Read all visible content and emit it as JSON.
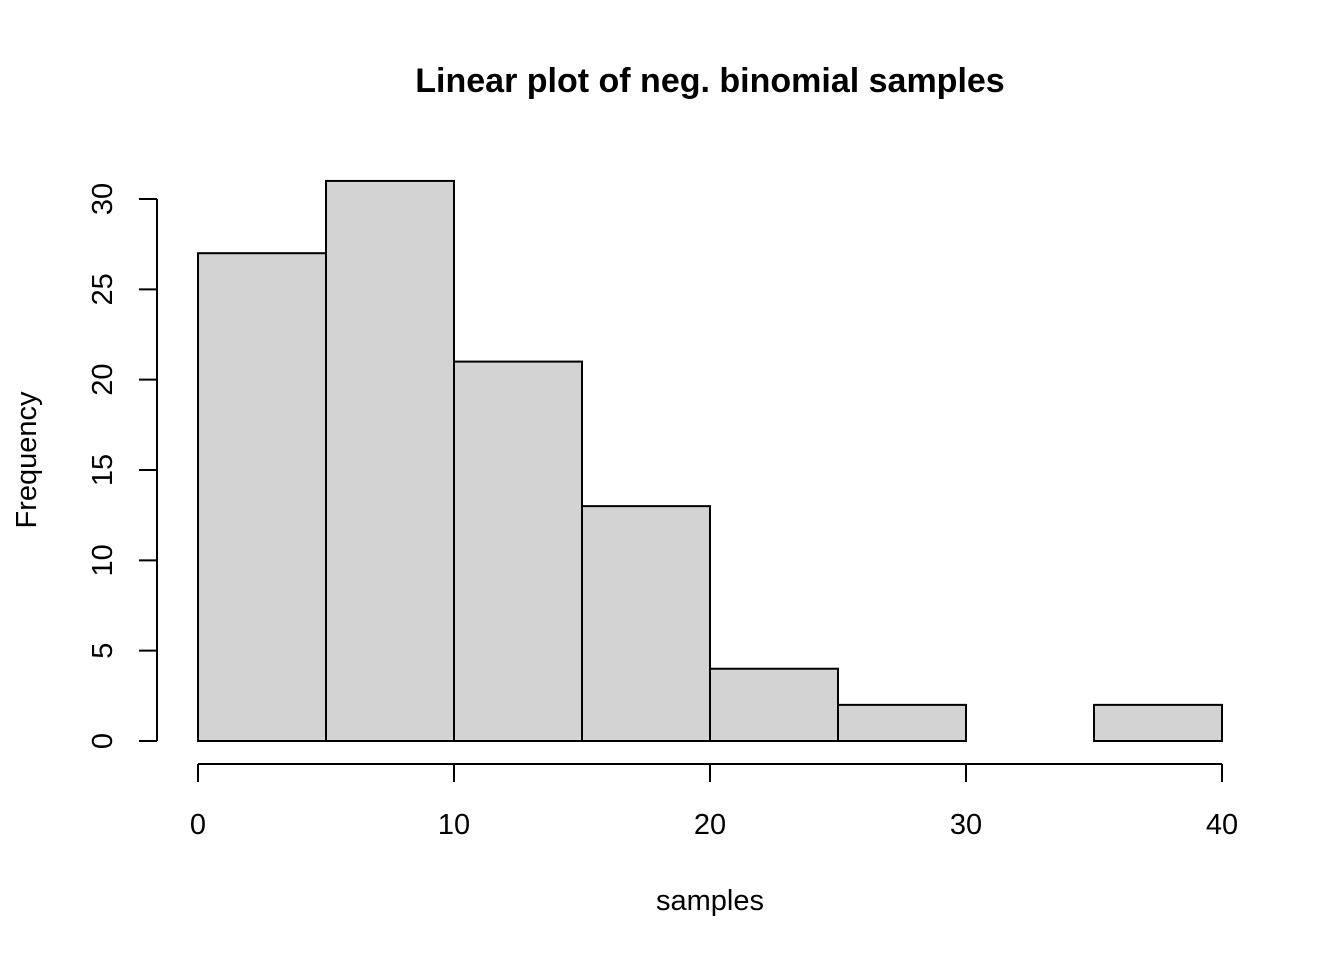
{
  "chart_data": {
    "type": "bar",
    "subtype": "histogram",
    "title": "Linear plot of neg. binomial samples",
    "xlabel": "samples",
    "ylabel": "Frequency",
    "bins": [
      {
        "start": 0,
        "end": 5,
        "count": 27
      },
      {
        "start": 5,
        "end": 10,
        "count": 31
      },
      {
        "start": 10,
        "end": 15,
        "count": 21
      },
      {
        "start": 15,
        "end": 20,
        "count": 13
      },
      {
        "start": 20,
        "end": 25,
        "count": 4
      },
      {
        "start": 25,
        "end": 30,
        "count": 2
      },
      {
        "start": 30,
        "end": 35,
        "count": 0
      },
      {
        "start": 35,
        "end": 40,
        "count": 2
      }
    ],
    "xlim": [
      0,
      40
    ],
    "ylim": [
      0,
      30
    ],
    "xticks": [
      0,
      10,
      20,
      30,
      40
    ],
    "yticks": [
      0,
      5,
      10,
      15,
      20,
      25,
      30
    ],
    "bar_color": "#d3d3d3",
    "edge_color": "#000000",
    "grid": false,
    "legend": "none"
  }
}
